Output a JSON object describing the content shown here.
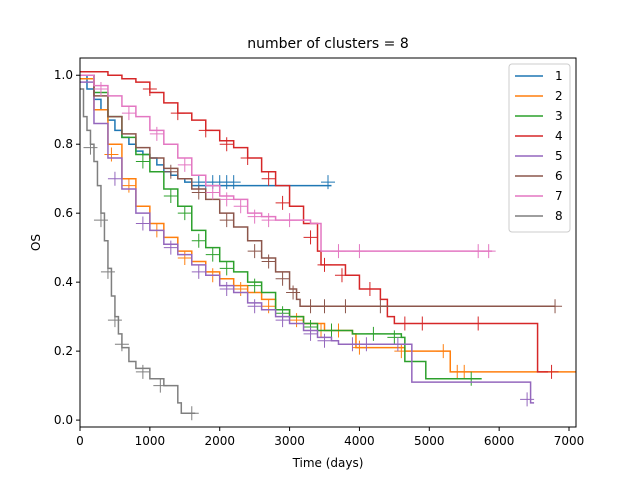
{
  "chart_data": {
    "type": "line",
    "title": "number of clusters = 8",
    "xlabel": "Time (days)",
    "ylabel": "OS",
    "xlim": [
      0,
      7100
    ],
    "ylim": [
      -0.02,
      1.05
    ],
    "x_ticks": [
      0,
      1000,
      2000,
      3000,
      4000,
      5000,
      6000,
      7000
    ],
    "y_ticks": [
      0.0,
      0.2,
      0.4,
      0.6,
      0.8,
      1.0
    ],
    "x_tick_labels": [
      "0",
      "1000",
      "2000",
      "3000",
      "4000",
      "5000",
      "6000",
      "7000"
    ],
    "y_tick_labels": [
      "0.0",
      "0.2",
      "0.4",
      "0.6",
      "0.8",
      "1.0"
    ],
    "grid": false,
    "legend_position": "top-right",
    "series": [
      {
        "name": "1",
        "color": "#1f77b4",
        "steps": [
          [
            0,
            1.0
          ],
          [
            100,
            0.96
          ],
          [
            200,
            0.93
          ],
          [
            300,
            0.9
          ],
          [
            400,
            0.87
          ],
          [
            500,
            0.84
          ],
          [
            600,
            0.82
          ],
          [
            700,
            0.8
          ],
          [
            800,
            0.78
          ],
          [
            900,
            0.77
          ],
          [
            1000,
            0.76
          ],
          [
            1100,
            0.74
          ],
          [
            1200,
            0.72
          ],
          [
            1300,
            0.71
          ],
          [
            1400,
            0.7
          ],
          [
            1500,
            0.69
          ],
          [
            1600,
            0.68
          ],
          [
            3600,
            0.68
          ]
        ],
        "censored": [
          [
            1700,
            0.69
          ],
          [
            1800,
            0.69
          ],
          [
            1900,
            0.69
          ],
          [
            2000,
            0.69
          ],
          [
            2100,
            0.69
          ],
          [
            2200,
            0.69
          ],
          [
            3550,
            0.69
          ]
        ]
      },
      {
        "name": "2",
        "color": "#ff7f0e",
        "steps": [
          [
            0,
            0.99
          ],
          [
            200,
            0.9
          ],
          [
            400,
            0.8
          ],
          [
            600,
            0.7
          ],
          [
            800,
            0.62
          ],
          [
            1000,
            0.57
          ],
          [
            1200,
            0.53
          ],
          [
            1400,
            0.49
          ],
          [
            1600,
            0.46
          ],
          [
            1800,
            0.43
          ],
          [
            2000,
            0.41
          ],
          [
            2200,
            0.39
          ],
          [
            2400,
            0.37
          ],
          [
            2600,
            0.35
          ],
          [
            2800,
            0.32
          ],
          [
            3000,
            0.3
          ],
          [
            3200,
            0.28
          ],
          [
            3500,
            0.26
          ],
          [
            3900,
            0.25
          ],
          [
            3950,
            0.21
          ],
          [
            4650,
            0.2
          ],
          [
            4700,
            0.2
          ],
          [
            5300,
            0.2
          ],
          [
            5300,
            0.14
          ],
          [
            7100,
            0.14
          ]
        ],
        "censored": [
          [
            450,
            0.77
          ],
          [
            700,
            0.68
          ],
          [
            1100,
            0.55
          ],
          [
            1500,
            0.47
          ],
          [
            1900,
            0.42
          ],
          [
            2300,
            0.38
          ],
          [
            2700,
            0.33
          ],
          [
            3100,
            0.29
          ],
          [
            3450,
            0.26
          ],
          [
            3700,
            0.26
          ],
          [
            4000,
            0.21
          ],
          [
            4600,
            0.2
          ],
          [
            5200,
            0.2
          ],
          [
            5400,
            0.14
          ],
          [
            5500,
            0.14
          ]
        ]
      },
      {
        "name": "3",
        "color": "#2ca02c",
        "steps": [
          [
            0,
            1.0
          ],
          [
            200,
            0.95
          ],
          [
            400,
            0.88
          ],
          [
            600,
            0.82
          ],
          [
            800,
            0.77
          ],
          [
            1000,
            0.72
          ],
          [
            1200,
            0.67
          ],
          [
            1400,
            0.62
          ],
          [
            1600,
            0.55
          ],
          [
            1800,
            0.5
          ],
          [
            2000,
            0.46
          ],
          [
            2200,
            0.43
          ],
          [
            2400,
            0.4
          ],
          [
            2600,
            0.37
          ],
          [
            2800,
            0.32
          ],
          [
            3000,
            0.3
          ],
          [
            3200,
            0.28
          ],
          [
            3400,
            0.26
          ],
          [
            3800,
            0.26
          ],
          [
            3900,
            0.25
          ],
          [
            4600,
            0.24
          ],
          [
            4650,
            0.17
          ],
          [
            4950,
            0.16
          ],
          [
            4950,
            0.12
          ],
          [
            5750,
            0.12
          ]
        ],
        "censored": [
          [
            900,
            0.75
          ],
          [
            1300,
            0.65
          ],
          [
            1500,
            0.6
          ],
          [
            1700,
            0.52
          ],
          [
            1900,
            0.48
          ],
          [
            2100,
            0.44
          ],
          [
            2500,
            0.39
          ],
          [
            2900,
            0.31
          ],
          [
            3300,
            0.27
          ],
          [
            3600,
            0.26
          ],
          [
            4200,
            0.25
          ],
          [
            4500,
            0.24
          ],
          [
            5600,
            0.12
          ]
        ]
      },
      {
        "name": "4",
        "color": "#d62728",
        "steps": [
          [
            0,
            1.01
          ],
          [
            400,
            1.0
          ],
          [
            600,
            0.99
          ],
          [
            800,
            0.98
          ],
          [
            1000,
            0.95
          ],
          [
            1200,
            0.92
          ],
          [
            1400,
            0.89
          ],
          [
            1600,
            0.87
          ],
          [
            1800,
            0.84
          ],
          [
            2000,
            0.81
          ],
          [
            2200,
            0.79
          ],
          [
            2400,
            0.76
          ],
          [
            2600,
            0.72
          ],
          [
            2800,
            0.68
          ],
          [
            3000,
            0.62
          ],
          [
            3200,
            0.57
          ],
          [
            3400,
            0.49
          ],
          [
            3450,
            0.45
          ],
          [
            3800,
            0.42
          ],
          [
            4000,
            0.38
          ],
          [
            4300,
            0.35
          ],
          [
            4400,
            0.3
          ],
          [
            4500,
            0.28
          ],
          [
            6550,
            0.28
          ],
          [
            6550,
            0.14
          ],
          [
            6700,
            0.14
          ]
        ],
        "censored": [
          [
            1000,
            0.96
          ],
          [
            1400,
            0.89
          ],
          [
            1800,
            0.84
          ],
          [
            2100,
            0.8
          ],
          [
            2400,
            0.76
          ],
          [
            2700,
            0.7
          ],
          [
            2900,
            0.63
          ],
          [
            3300,
            0.53
          ],
          [
            3500,
            0.45
          ],
          [
            3750,
            0.42
          ],
          [
            4150,
            0.38
          ],
          [
            4650,
            0.28
          ],
          [
            4900,
            0.28
          ],
          [
            5700,
            0.28
          ],
          [
            6750,
            0.14
          ]
        ]
      },
      {
        "name": "5",
        "color": "#9467bd",
        "steps": [
          [
            0,
            0.98
          ],
          [
            200,
            0.86
          ],
          [
            400,
            0.76
          ],
          [
            600,
            0.67
          ],
          [
            800,
            0.6
          ],
          [
            1000,
            0.55
          ],
          [
            1200,
            0.51
          ],
          [
            1400,
            0.48
          ],
          [
            1600,
            0.45
          ],
          [
            1800,
            0.42
          ],
          [
            2000,
            0.39
          ],
          [
            2200,
            0.37
          ],
          [
            2400,
            0.34
          ],
          [
            2600,
            0.32
          ],
          [
            2800,
            0.3
          ],
          [
            3000,
            0.28
          ],
          [
            3200,
            0.26
          ],
          [
            3400,
            0.24
          ],
          [
            3600,
            0.23
          ],
          [
            3700,
            0.22
          ],
          [
            4200,
            0.22
          ],
          [
            4700,
            0.22
          ],
          [
            4750,
            0.11
          ],
          [
            6450,
            0.11
          ],
          [
            6450,
            0.05
          ],
          [
            6500,
            0.05
          ]
        ],
        "censored": [
          [
            500,
            0.7
          ],
          [
            900,
            0.57
          ],
          [
            1300,
            0.5
          ],
          [
            1700,
            0.43
          ],
          [
            2100,
            0.38
          ],
          [
            2500,
            0.33
          ],
          [
            2900,
            0.29
          ],
          [
            3300,
            0.25
          ],
          [
            3500,
            0.23
          ],
          [
            3900,
            0.22
          ],
          [
            4100,
            0.22
          ],
          [
            4550,
            0.22
          ],
          [
            6400,
            0.06
          ]
        ]
      },
      {
        "name": "6",
        "color": "#8c564b",
        "steps": [
          [
            0,
            1.0
          ],
          [
            200,
            0.94
          ],
          [
            400,
            0.88
          ],
          [
            600,
            0.83
          ],
          [
            800,
            0.79
          ],
          [
            1000,
            0.76
          ],
          [
            1200,
            0.73
          ],
          [
            1400,
            0.7
          ],
          [
            1600,
            0.67
          ],
          [
            1800,
            0.64
          ],
          [
            2000,
            0.6
          ],
          [
            2200,
            0.56
          ],
          [
            2400,
            0.52
          ],
          [
            2600,
            0.47
          ],
          [
            2800,
            0.43
          ],
          [
            3000,
            0.38
          ],
          [
            3100,
            0.35
          ],
          [
            3150,
            0.33
          ],
          [
            3200,
            0.33
          ],
          [
            6800,
            0.33
          ]
        ],
        "censored": [
          [
            1300,
            0.72
          ],
          [
            1700,
            0.66
          ],
          [
            2100,
            0.58
          ],
          [
            2500,
            0.49
          ],
          [
            2700,
            0.46
          ],
          [
            2900,
            0.41
          ],
          [
            3050,
            0.37
          ],
          [
            3300,
            0.33
          ],
          [
            3500,
            0.33
          ],
          [
            3800,
            0.33
          ],
          [
            4300,
            0.33
          ],
          [
            6800,
            0.33
          ]
        ]
      },
      {
        "name": "7",
        "color": "#e377c2",
        "steps": [
          [
            0,
            1.0
          ],
          [
            200,
            0.97
          ],
          [
            400,
            0.94
          ],
          [
            600,
            0.91
          ],
          [
            800,
            0.88
          ],
          [
            1000,
            0.84
          ],
          [
            1200,
            0.8
          ],
          [
            1400,
            0.76
          ],
          [
            1600,
            0.71
          ],
          [
            1800,
            0.68
          ],
          [
            2000,
            0.65
          ],
          [
            2200,
            0.64
          ],
          [
            2400,
            0.6
          ],
          [
            2600,
            0.59
          ],
          [
            2800,
            0.58
          ],
          [
            3000,
            0.58
          ],
          [
            3300,
            0.57
          ],
          [
            3400,
            0.57
          ],
          [
            3450,
            0.49
          ],
          [
            5900,
            0.49
          ]
        ],
        "censored": [
          [
            300,
            0.96
          ],
          [
            700,
            0.89
          ],
          [
            1100,
            0.83
          ],
          [
            1500,
            0.74
          ],
          [
            1900,
            0.66
          ],
          [
            2100,
            0.64
          ],
          [
            2300,
            0.62
          ],
          [
            2500,
            0.59
          ],
          [
            2700,
            0.58
          ],
          [
            3000,
            0.58
          ],
          [
            3700,
            0.49
          ],
          [
            4000,
            0.49
          ],
          [
            5700,
            0.49
          ],
          [
            5850,
            0.49
          ]
        ]
      },
      {
        "name": "8",
        "color": "#7f7f7f",
        "steps": [
          [
            0,
            0.96
          ],
          [
            50,
            0.88
          ],
          [
            100,
            0.84
          ],
          [
            150,
            0.8
          ],
          [
            200,
            0.75
          ],
          [
            250,
            0.68
          ],
          [
            300,
            0.6
          ],
          [
            350,
            0.52
          ],
          [
            400,
            0.44
          ],
          [
            450,
            0.36
          ],
          [
            500,
            0.3
          ],
          [
            550,
            0.25
          ],
          [
            600,
            0.21
          ],
          [
            700,
            0.17
          ],
          [
            800,
            0.15
          ],
          [
            1000,
            0.12
          ],
          [
            1200,
            0.1
          ],
          [
            1400,
            0.05
          ],
          [
            1450,
            0.02
          ],
          [
            1650,
            0.02
          ]
        ],
        "censored": [
          [
            150,
            0.79
          ],
          [
            300,
            0.58
          ],
          [
            400,
            0.43
          ],
          [
            500,
            0.29
          ],
          [
            600,
            0.22
          ],
          [
            900,
            0.14
          ],
          [
            1150,
            0.1
          ],
          [
            1600,
            0.02
          ]
        ]
      }
    ]
  }
}
